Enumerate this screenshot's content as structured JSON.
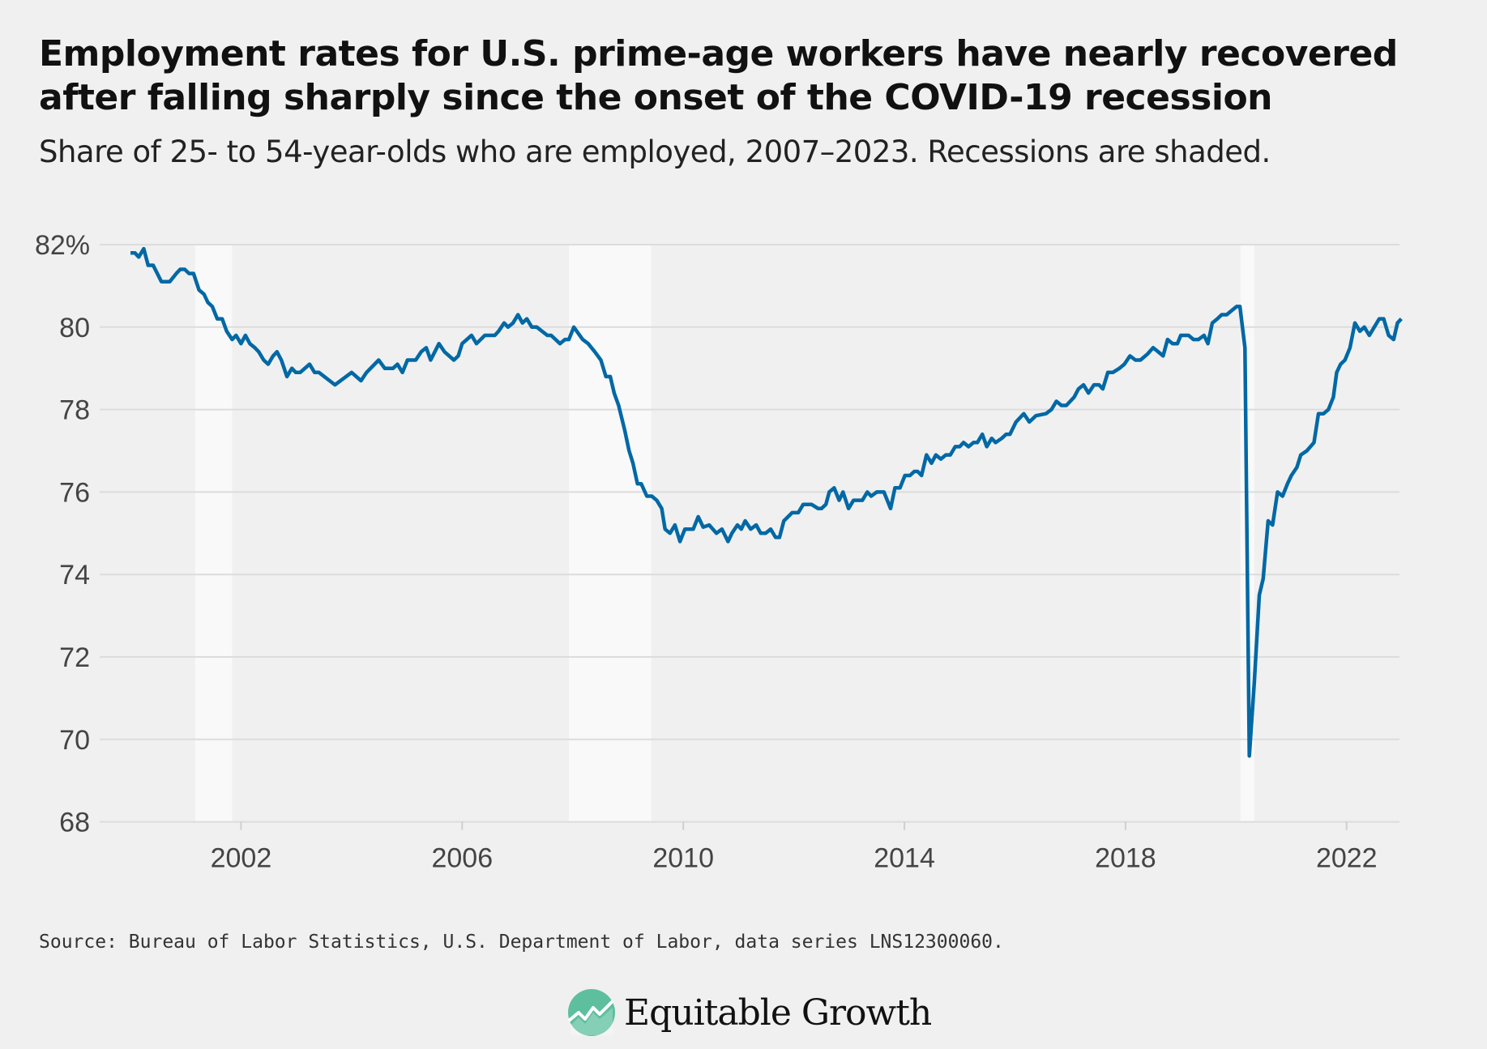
{
  "title": "Employment rates for U.S. prime-age workers have nearly recovered after falling sharply since the onset of the COVID-19 recession",
  "subtitle": "Share of 25- to 54-year-olds who are employed, 2007–2023. Recessions are shaded.",
  "source": "Source: Bureau of Labor Statistics, U.S. Department of Labor, data series LNS12300060.",
  "logo": {
    "text": "Equitable Growth",
    "icon": "rising-chart-circle-icon",
    "color": "#5dbf9e"
  },
  "chart_data": {
    "type": "line",
    "title": "",
    "xlabel": "",
    "ylabel": "",
    "xlim": [
      2000,
      2023
    ],
    "ylim": [
      68,
      82
    ],
    "grid": true,
    "x_ticks": [
      2002,
      2006,
      2010,
      2014,
      2018,
      2022
    ],
    "x_tick_labels": [
      "2002",
      "2006",
      "2010",
      "2014",
      "2018",
      "2022"
    ],
    "y_ticks": [
      68,
      70,
      72,
      74,
      76,
      78,
      80,
      82
    ],
    "y_tick_labels": [
      "68",
      "70",
      "72",
      "74",
      "76",
      "78",
      "80",
      "82%"
    ],
    "line_color": "#0068a5",
    "recession_color": "#f9f9f9",
    "recessions": [
      [
        2001.17,
        2001.84
      ],
      [
        2007.93,
        2009.42
      ],
      [
        2020.08,
        2020.33
      ]
    ],
    "series": [
      {
        "x": [
          2000.0,
          2000.08,
          2000.15,
          2000.24,
          2000.32,
          2000.41,
          2000.56,
          2000.71,
          2000.83,
          2000.9,
          2000.98,
          2001.06,
          2001.14,
          2001.24,
          2001.33,
          2001.4,
          2001.48,
          2001.57,
          2001.66,
          2001.74,
          2001.84,
          2001.91,
          2002.0,
          2002.08,
          2002.16,
          2002.25,
          2002.32,
          2002.41,
          2002.49,
          2002.58,
          2002.65,
          2002.73,
          2002.83,
          2002.92,
          2002.99,
          2003.07,
          2003.24,
          2003.33,
          2003.41,
          2003.7,
          2004.0,
          2004.17,
          2004.27,
          2004.49,
          2004.6,
          2004.75,
          2004.83,
          2004.92,
          2005.01,
          2005.16,
          2005.26,
          2005.35,
          2005.43,
          2005.58,
          2005.68,
          2005.85,
          2005.93,
          2006.0,
          2006.17,
          2006.26,
          2006.41,
          2006.59,
          2006.66,
          2006.76,
          2006.83,
          2006.92,
          2007.01,
          2007.09,
          2007.17,
          2007.26,
          2007.35,
          2007.54,
          2007.61,
          2007.77,
          2007.86,
          2007.93,
          2008.02,
          2008.18,
          2008.28,
          2008.4,
          2008.51,
          2008.6,
          2008.68,
          2008.75,
          2008.83,
          2008.94,
          2009.02,
          2009.09,
          2009.17,
          2009.24,
          2009.34,
          2009.43,
          2009.52,
          2009.61,
          2009.67,
          2009.76,
          2009.85,
          2009.94,
          2010.03,
          2010.18,
          2010.27,
          2010.36,
          2010.47,
          2010.6,
          2010.7,
          2010.81,
          2010.88,
          2010.98,
          2011.05,
          2011.12,
          2011.22,
          2011.32,
          2011.4,
          2011.49,
          2011.58,
          2011.67,
          2011.74,
          2011.82,
          2011.97,
          2012.08,
          2012.17,
          2012.32,
          2012.44,
          2012.5,
          2012.58,
          2012.64,
          2012.73,
          2012.82,
          2012.89,
          2012.99,
          2013.08,
          2013.24,
          2013.33,
          2013.4,
          2013.5,
          2013.63,
          2013.75,
          2013.83,
          2013.92,
          2014.01,
          2014.1,
          2014.18,
          2014.24,
          2014.31,
          2014.4,
          2014.49,
          2014.57,
          2014.66,
          2014.75,
          2014.83,
          2014.92,
          2015.0,
          2015.07,
          2015.16,
          2015.25,
          2015.32,
          2015.41,
          2015.49,
          2015.58,
          2015.65,
          2015.76,
          2015.84,
          2015.91,
          2016.02,
          2016.16,
          2016.26,
          2016.38,
          2016.56,
          2016.66,
          2016.75,
          2016.84,
          2016.93,
          2017.07,
          2017.15,
          2017.24,
          2017.33,
          2017.43,
          2017.52,
          2017.59,
          2017.68,
          2017.77,
          2017.89,
          2017.98,
          2018.08,
          2018.18,
          2018.27,
          2018.4,
          2018.5,
          2018.59,
          2018.68,
          2018.76,
          2018.85,
          2018.94,
          2019.0,
          2019.14,
          2019.23,
          2019.32,
          2019.42,
          2019.49,
          2019.57,
          2019.66,
          2019.74,
          2019.83,
          2019.92,
          2020.01,
          2020.07,
          2020.16,
          2020.24,
          2020.33,
          2020.42,
          2020.49,
          2020.58,
          2020.66,
          2020.75,
          2020.84,
          2020.93,
          2021.0,
          2021.1,
          2021.17,
          2021.28,
          2021.41,
          2021.49,
          2021.58,
          2021.67,
          2021.76,
          2021.82,
          2021.89,
          2021.97,
          2022.06,
          2022.15,
          2022.24,
          2022.32,
          2022.41,
          2022.5,
          2022.59,
          2022.67,
          2022.76,
          2022.85,
          2022.92,
          2022.99
        ],
        "y": [
          81.8,
          81.8,
          81.7,
          81.9,
          81.5,
          81.5,
          81.1,
          81.1,
          81.3,
          81.4,
          81.4,
          81.3,
          81.3,
          80.9,
          80.8,
          80.6,
          80.5,
          80.2,
          80.2,
          79.9,
          79.7,
          79.8,
          79.6,
          79.8,
          79.6,
          79.5,
          79.4,
          79.2,
          79.1,
          79.3,
          79.4,
          79.2,
          78.8,
          79.0,
          78.9,
          78.9,
          79.1,
          78.9,
          78.9,
          78.6,
          78.9,
          78.7,
          78.9,
          79.2,
          79.0,
          79.0,
          79.1,
          78.9,
          79.2,
          79.2,
          79.4,
          79.5,
          79.2,
          79.6,
          79.4,
          79.2,
          79.3,
          79.6,
          79.8,
          79.6,
          79.8,
          79.8,
          79.9,
          80.1,
          80.0,
          80.1,
          80.3,
          80.1,
          80.2,
          80.0,
          80.0,
          79.8,
          79.8,
          79.6,
          79.7,
          79.7,
          80.0,
          79.7,
          79.6,
          79.4,
          79.2,
          78.8,
          78.8,
          78.4,
          78.1,
          77.5,
          77.0,
          76.7,
          76.2,
          76.2,
          75.9,
          75.9,
          75.8,
          75.6,
          75.1,
          75.0,
          75.2,
          74.8,
          75.1,
          75.1,
          75.4,
          75.15,
          75.2,
          75.0,
          75.1,
          74.8,
          75.0,
          75.2,
          75.1,
          75.3,
          75.1,
          75.2,
          75.0,
          75.0,
          75.1,
          74.9,
          74.9,
          75.3,
          75.5,
          75.5,
          75.7,
          75.7,
          75.6,
          75.6,
          75.7,
          76.0,
          76.1,
          75.8,
          76.0,
          75.6,
          75.8,
          75.8,
          76.0,
          75.9,
          76.0,
          76.0,
          75.6,
          76.1,
          76.1,
          76.4,
          76.4,
          76.5,
          76.5,
          76.4,
          76.9,
          76.7,
          76.9,
          76.8,
          76.9,
          76.9,
          77.1,
          77.1,
          77.2,
          77.1,
          77.2,
          77.2,
          77.4,
          77.1,
          77.3,
          77.2,
          77.3,
          77.4,
          77.4,
          77.7,
          77.9,
          77.7,
          77.85,
          77.9,
          78.0,
          78.2,
          78.1,
          78.1,
          78.3,
          78.5,
          78.6,
          78.4,
          78.6,
          78.6,
          78.5,
          78.9,
          78.9,
          79.0,
          79.1,
          79.3,
          79.2,
          79.2,
          79.35,
          79.5,
          79.4,
          79.3,
          79.7,
          79.6,
          79.6,
          79.8,
          79.8,
          79.7,
          79.7,
          79.8,
          79.6,
          80.1,
          80.2,
          80.3,
          80.3,
          80.4,
          80.5,
          80.5,
          79.5,
          69.6,
          71.4,
          73.5,
          73.9,
          75.3,
          75.2,
          76.0,
          75.9,
          76.2,
          76.4,
          76.6,
          76.9,
          77.0,
          77.2,
          77.9,
          77.9,
          78.0,
          78.3,
          78.9,
          79.1,
          79.2,
          79.5,
          80.1,
          79.9,
          80.0,
          79.8,
          80.0,
          80.2,
          80.2,
          79.8,
          79.7,
          80.1,
          80.2
        ]
      }
    ]
  }
}
